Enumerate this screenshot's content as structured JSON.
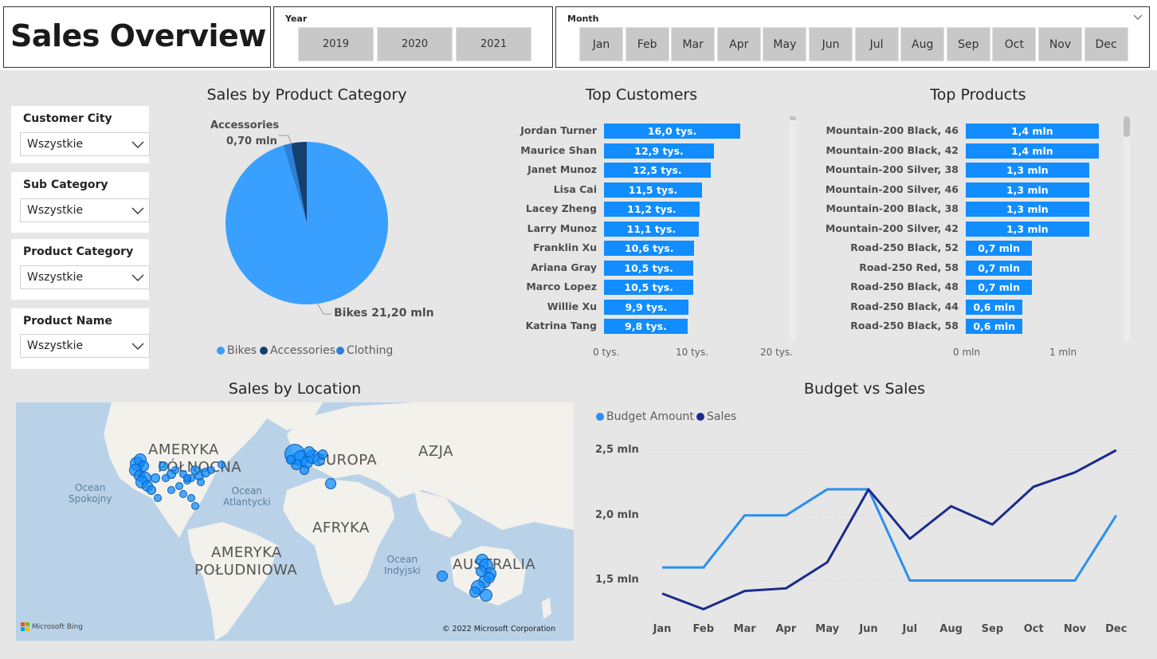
{
  "header": {
    "title": "Sales Overview"
  },
  "year_slicer": {
    "label": "Year",
    "options": [
      "2019",
      "2020",
      "2021"
    ]
  },
  "month_slicer": {
    "label": "Month",
    "options": [
      "Jan",
      "Feb",
      "Mar",
      "Apr",
      "May",
      "Jun",
      "Jul",
      "Aug",
      "Sep",
      "Oct",
      "Nov",
      "Dec"
    ]
  },
  "filters": [
    {
      "title": "Customer City",
      "value": "Wszystkie"
    },
    {
      "title": "Sub Category",
      "value": "Wszystkie"
    },
    {
      "title": "Product Category",
      "value": "Wszystkie"
    },
    {
      "title": "Product Name",
      "value": "Wszystkie"
    }
  ],
  "pie": {
    "title": "Sales by Product Category",
    "label_accessories_name": "Accessories",
    "label_accessories_value": "0,70 mln",
    "label_bikes": "Bikes 21,20 mln",
    "legend": [
      "Bikes",
      "Accessories",
      "Clothing"
    ],
    "colors": {
      "Bikes": "#3aa0ff",
      "Accessories": "#12406f",
      "Clothing": "#2a7fd8"
    }
  },
  "top_customers": {
    "title": "Top Customers",
    "axis": [
      "0 tys.",
      "10 tys.",
      "20 tys."
    ]
  },
  "top_products": {
    "title": "Top Products",
    "axis": [
      "0 mln",
      "1 mln"
    ]
  },
  "map": {
    "title": "Sales by Location",
    "labels": {
      "na": "AMERYKA PÓŁNOCNA",
      "na1": "AMERYKA",
      "na2": "PÓŁNOCNA",
      "europe": "EUROPA",
      "asia": "AZJA",
      "africa": "AFRYKA",
      "sa1": "AMERYKA",
      "sa2": "POŁUDNIOWA",
      "australia": "AUSTRALIA"
    },
    "oceans": {
      "pacific1": "Ocean",
      "pacific2": "Spokojny",
      "atlantic1": "Ocean",
      "atlantic2": "Atlantycki",
      "indian1": "Ocean",
      "indian2": "Indyjski"
    },
    "bing": "Microsoft Bing",
    "copyright": "© 2022 Microsoft Corporation"
  },
  "line": {
    "title": "Budget vs Sales",
    "legend": [
      "Budget Amount",
      "Sales"
    ],
    "colors": {
      "Budget Amount": "#2b8ff0",
      "Sales": "#1a2b8c"
    },
    "y_labels": [
      "2,5 mln",
      "2,0 mln",
      "1,5 mln"
    ]
  },
  "chart_data": [
    {
      "type": "pie",
      "title": "Sales by Product Category",
      "categories": [
        "Bikes",
        "Accessories",
        "Clothing"
      ],
      "values": [
        21.2,
        0.7,
        0.34
      ],
      "unit": "mln"
    },
    {
      "type": "bar",
      "title": "Top Customers",
      "categories": [
        "Jordan Turner",
        "Maurice Shan",
        "Janet Munoz",
        "Lisa Cai",
        "Lacey Zheng",
        "Larry Munoz",
        "Franklin Xu",
        "Ariana Gray",
        "Marco Lopez",
        "Willie Xu",
        "Katrina Tang"
      ],
      "values": [
        16.0,
        12.9,
        12.5,
        11.5,
        11.2,
        11.1,
        10.6,
        10.5,
        10.5,
        9.9,
        9.8
      ],
      "labels": [
        "16,0 tys.",
        "12,9 tys.",
        "12,5 tys.",
        "11,5 tys.",
        "11,2 tys.",
        "11,1 tys.",
        "10,6 tys.",
        "10,5 tys.",
        "10,5 tys.",
        "9,9 tys.",
        "9,8 tys."
      ],
      "xlim": [
        0,
        20
      ],
      "unit": "tys."
    },
    {
      "type": "bar",
      "title": "Top Products",
      "categories": [
        "Mountain-200 Black, 46",
        "Mountain-200 Black, 42",
        "Mountain-200 Silver, 38",
        "Mountain-200 Silver, 46",
        "Mountain-200 Black, 38",
        "Mountain-200 Silver, 42",
        "Road-250 Black, 52",
        "Road-250 Red, 58",
        "Road-250 Black, 48",
        "Road-250 Black, 44",
        "Road-250 Black, 58"
      ],
      "values": [
        1.4,
        1.4,
        1.3,
        1.3,
        1.3,
        1.3,
        0.7,
        0.7,
        0.7,
        0.6,
        0.6
      ],
      "labels": [
        "1,4 mln",
        "1,4 mln",
        "1,3 mln",
        "1,3 mln",
        "1,3 mln",
        "1,3 mln",
        "0,7 mln",
        "0,7 mln",
        "0,7 mln",
        "0,6 mln",
        "0,6 mln"
      ],
      "xlim": [
        0,
        1.6
      ],
      "unit": "mln"
    },
    {
      "type": "line",
      "title": "Budget vs Sales",
      "categories": [
        "Jan",
        "Feb",
        "Mar",
        "Apr",
        "May",
        "Jun",
        "Jul",
        "Aug",
        "Sep",
        "Oct",
        "Nov",
        "Dec"
      ],
      "series": [
        {
          "name": "Budget Amount",
          "values": [
            1.6,
            1.6,
            2.0,
            2.0,
            2.2,
            2.2,
            1.5,
            1.5,
            1.5,
            1.5,
            1.5,
            2.0
          ]
        },
        {
          "name": "Sales",
          "values": [
            1.4,
            1.28,
            1.42,
            1.44,
            1.64,
            2.2,
            1.82,
            2.07,
            1.93,
            2.22,
            2.33,
            2.5
          ]
        }
      ],
      "ylim": [
        1.3,
        2.6
      ],
      "unit": "mln"
    }
  ]
}
